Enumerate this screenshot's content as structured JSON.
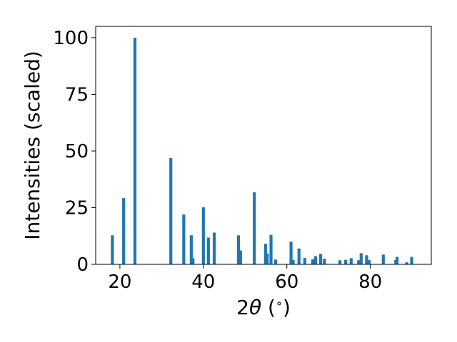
{
  "chart_data": {
    "type": "bar",
    "title": "",
    "xlabel_prefix": "2",
    "xlabel_symbol": "θ",
    "xlabel_unit": " (",
    "xlabel_degree": "∘",
    "xlabel_close": ")",
    "ylabel": "Intensities (scaled)",
    "xlim": [
      14.2,
      94.6
    ],
    "ylim": [
      0,
      105
    ],
    "xticks": [
      20,
      40,
      60,
      80
    ],
    "yticks": [
      0,
      25,
      50,
      75,
      100
    ],
    "bar_color": "#1f77b4",
    "grid": false,
    "legend": "none",
    "points": [
      {
        "x": 18.2,
        "y": 12.8
      },
      {
        "x": 20.9,
        "y": 29.2
      },
      {
        "x": 23.6,
        "y": 100.0
      },
      {
        "x": 32.2,
        "y": 46.9
      },
      {
        "x": 35.3,
        "y": 22.0
      },
      {
        "x": 37.1,
        "y": 12.8
      },
      {
        "x": 37.5,
        "y": 2.7
      },
      {
        "x": 40.0,
        "y": 25.2
      },
      {
        "x": 41.2,
        "y": 11.8
      },
      {
        "x": 42.6,
        "y": 14.0
      },
      {
        "x": 48.4,
        "y": 12.8
      },
      {
        "x": 48.9,
        "y": 6.1
      },
      {
        "x": 52.2,
        "y": 31.8
      },
      {
        "x": 54.9,
        "y": 9.1
      },
      {
        "x": 55.3,
        "y": 4.8
      },
      {
        "x": 56.2,
        "y": 13.0
      },
      {
        "x": 57.3,
        "y": 2.1
      },
      {
        "x": 61.0,
        "y": 10.0
      },
      {
        "x": 61.5,
        "y": 1.9
      },
      {
        "x": 62.9,
        "y": 7.0
      },
      {
        "x": 64.3,
        "y": 2.8
      },
      {
        "x": 66.2,
        "y": 2.2
      },
      {
        "x": 66.9,
        "y": 3.6
      },
      {
        "x": 68.1,
        "y": 4.6
      },
      {
        "x": 69.0,
        "y": 2.5
      },
      {
        "x": 72.7,
        "y": 1.8
      },
      {
        "x": 74.1,
        "y": 2.0
      },
      {
        "x": 75.4,
        "y": 2.7
      },
      {
        "x": 77.2,
        "y": 1.8
      },
      {
        "x": 77.8,
        "y": 4.9
      },
      {
        "x": 79.1,
        "y": 4.0
      },
      {
        "x": 79.7,
        "y": 1.9
      },
      {
        "x": 83.1,
        "y": 4.3
      },
      {
        "x": 86.1,
        "y": 1.9
      },
      {
        "x": 86.4,
        "y": 3.3
      },
      {
        "x": 88.7,
        "y": 0.9
      },
      {
        "x": 89.9,
        "y": 3.3
      }
    ]
  }
}
